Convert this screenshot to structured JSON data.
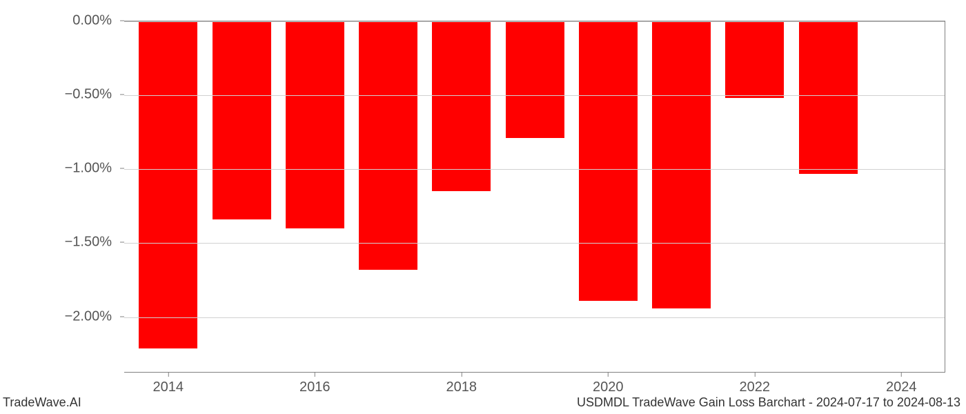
{
  "chart": {
    "type": "bar",
    "years": [
      2014,
      2015,
      2016,
      2017,
      2018,
      2019,
      2020,
      2021,
      2022,
      2023
    ],
    "values": [
      -2.21,
      -1.34,
      -1.4,
      -1.68,
      -1.15,
      -0.79,
      -1.89,
      -1.94,
      -0.52,
      -1.03
    ],
    "bar_color": "#ff0000",
    "background_color": "#ffffff",
    "grid_color": "#d0d0d0",
    "axis_color": "#808080",
    "tick_label_color": "#555555",
    "y_ticks": [
      {
        "value": 0.0,
        "label": "0.00%"
      },
      {
        "value": -0.5,
        "label": "−0.50%"
      },
      {
        "value": -1.0,
        "label": "−1.00%"
      },
      {
        "value": -1.5,
        "label": "−1.50%"
      },
      {
        "value": -2.0,
        "label": "−2.00%"
      }
    ],
    "y_min": -2.38,
    "y_max": 0.0,
    "x_tick_labels": [
      "2014",
      "2016",
      "2018",
      "2020",
      "2022",
      "2024"
    ],
    "x_tick_years": [
      2014,
      2016,
      2018,
      2020,
      2022,
      2024
    ],
    "x_min": 2013.4,
    "x_max": 2024.6,
    "bar_width_years": 0.8,
    "tick_fontsize": 20,
    "footer_fontsize": 18
  },
  "footer": {
    "left": "TradeWave.AI",
    "right": "USDMDL TradeWave Gain Loss Barchart - 2024-07-17 to 2024-08-13"
  }
}
